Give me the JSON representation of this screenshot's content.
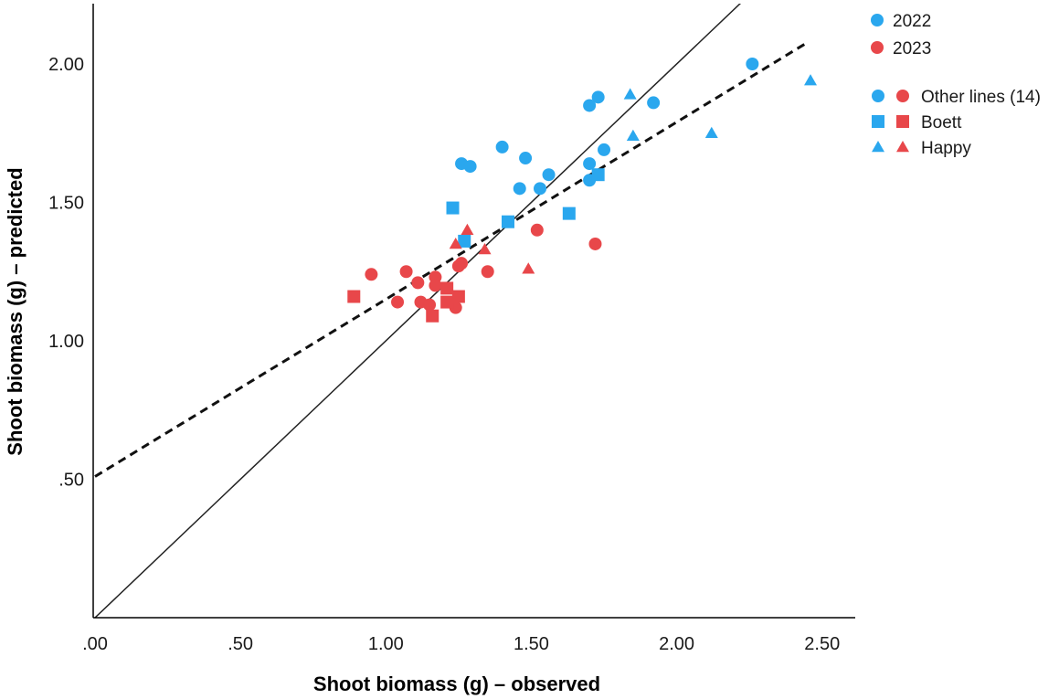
{
  "colors": {
    "y2022": "#2aa7ee",
    "y2023": "#e8474a",
    "axis": "#000000",
    "identity_line": "#222222",
    "fit_line": "#111111"
  },
  "chart_data": {
    "type": "scatter",
    "title": "",
    "xlabel": "Shoot biomass (g) – observed",
    "ylabel": "Shoot biomass (g) – predicted",
    "xlim": [
      0,
      2.65
    ],
    "ylim": [
      0,
      2.22
    ],
    "x_ticks": [
      0,
      0.5,
      1.0,
      1.5,
      2.0,
      2.5
    ],
    "x_tick_labels": [
      ".00",
      ".50",
      "1.00",
      "1.50",
      "2.00",
      "2.50"
    ],
    "y_ticks": [
      0.5,
      1.0,
      1.5,
      2.0
    ],
    "y_tick_labels": [
      ".50",
      "1.00",
      "1.50",
      "2.00"
    ],
    "grid": false,
    "legend_position": "right",
    "legend": {
      "years": [
        {
          "label": "2022",
          "color_key": "y2022"
        },
        {
          "label": "2023",
          "color_key": "y2023"
        }
      ],
      "markers": [
        {
          "label": "Other lines (14)",
          "shape": "circle"
        },
        {
          "label": "Boett",
          "shape": "square"
        },
        {
          "label": "Happy",
          "shape": "triangle"
        }
      ]
    },
    "reference_lines": [
      {
        "name": "identity",
        "style": "solid",
        "slope": 1.0,
        "intercept": 0.0
      },
      {
        "name": "fit",
        "style": "dashed",
        "x_range": [
          0,
          2.45
        ],
        "slope": 0.64,
        "intercept": 0.51
      }
    ],
    "series": [
      {
        "year": "2022",
        "line": "Other lines (14)",
        "shape": "circle",
        "color_key": "y2022",
        "points": [
          [
            2.26,
            2.0
          ],
          [
            1.73,
            1.88
          ],
          [
            1.7,
            1.85
          ],
          [
            1.92,
            1.86
          ],
          [
            1.4,
            1.7
          ],
          [
            1.48,
            1.66
          ],
          [
            1.26,
            1.64
          ],
          [
            1.29,
            1.63
          ],
          [
            1.56,
            1.6
          ],
          [
            1.46,
            1.55
          ],
          [
            1.53,
            1.55
          ],
          [
            1.7,
            1.64
          ],
          [
            1.75,
            1.69
          ],
          [
            1.7,
            1.58
          ]
        ]
      },
      {
        "year": "2022",
        "line": "Boett",
        "shape": "square",
        "color_key": "y2022",
        "points": [
          [
            1.23,
            1.48
          ],
          [
            1.42,
            1.43
          ],
          [
            1.63,
            1.46
          ],
          [
            1.27,
            1.36
          ],
          [
            1.73,
            1.6
          ]
        ]
      },
      {
        "year": "2022",
        "line": "Happy",
        "shape": "triangle",
        "color_key": "y2022",
        "points": [
          [
            1.84,
            1.89
          ],
          [
            1.85,
            1.74
          ],
          [
            2.12,
            1.75
          ],
          [
            2.46,
            1.94
          ]
        ]
      },
      {
        "year": "2023",
        "line": "Other lines (14)",
        "shape": "circle",
        "color_key": "y2023",
        "points": [
          [
            0.95,
            1.24
          ],
          [
            1.07,
            1.25
          ],
          [
            1.11,
            1.21
          ],
          [
            1.12,
            1.14
          ],
          [
            1.04,
            1.14
          ],
          [
            1.15,
            1.13
          ],
          [
            1.17,
            1.23
          ],
          [
            1.17,
            1.2
          ],
          [
            1.24,
            1.12
          ],
          [
            1.26,
            1.28
          ],
          [
            1.25,
            1.27
          ],
          [
            1.35,
            1.25
          ],
          [
            1.52,
            1.4
          ],
          [
            1.72,
            1.35
          ]
        ]
      },
      {
        "year": "2023",
        "line": "Boett",
        "shape": "square",
        "color_key": "y2023",
        "points": [
          [
            0.89,
            1.16
          ],
          [
            1.21,
            1.19
          ],
          [
            1.21,
            1.14
          ],
          [
            1.25,
            1.16
          ],
          [
            1.16,
            1.09
          ]
        ]
      },
      {
        "year": "2023",
        "line": "Happy",
        "shape": "triangle",
        "color_key": "y2023",
        "points": [
          [
            1.24,
            1.35
          ],
          [
            1.28,
            1.4
          ],
          [
            1.34,
            1.33
          ],
          [
            1.49,
            1.26
          ]
        ]
      }
    ]
  }
}
